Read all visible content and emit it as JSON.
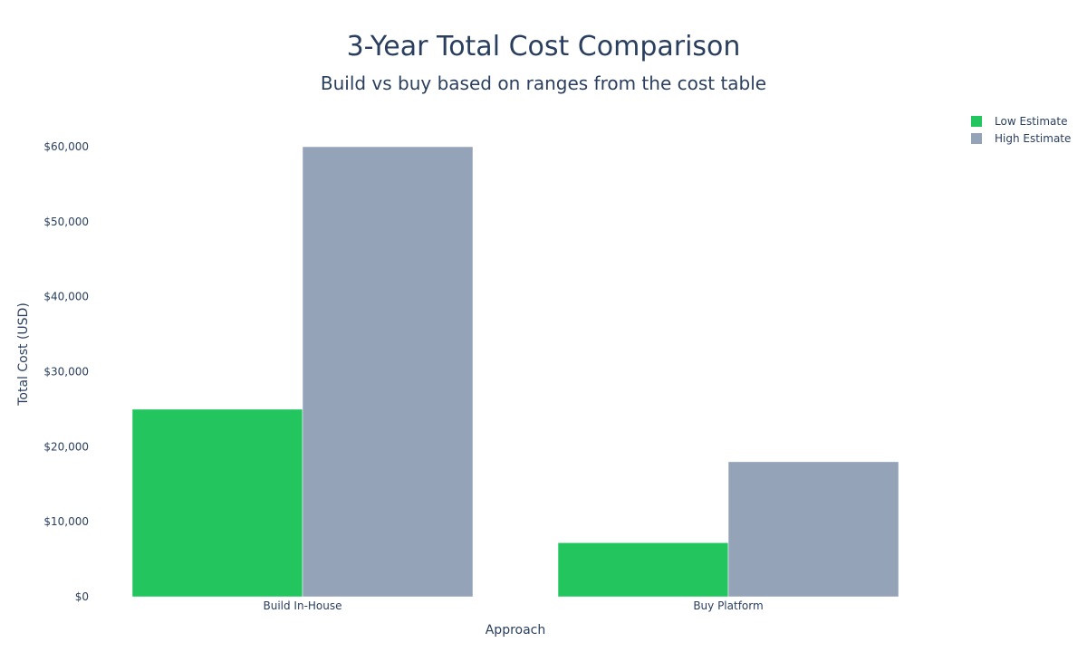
{
  "chart_data": {
    "type": "bar",
    "title": "3-Year Total Cost Comparison",
    "subtitle": "Build vs buy based on ranges from the cost table",
    "xlabel": "Approach",
    "ylabel": "Total Cost (USD)",
    "categories": [
      "Build In-House",
      "Buy Platform"
    ],
    "series": [
      {
        "name": "Low Estimate",
        "values": [
          25000,
          7200
        ],
        "color": "#22c55e"
      },
      {
        "name": "High Estimate",
        "values": [
          60000,
          18000
        ],
        "color": "#94a3b8"
      }
    ],
    "ylim": [
      0,
      60000
    ],
    "yticks": [
      0,
      10000,
      20000,
      30000,
      40000,
      50000,
      60000
    ],
    "ytick_labels": [
      "$0",
      "$10,000",
      "$20,000",
      "$30,000",
      "$40,000",
      "$50,000",
      "$60,000"
    ],
    "grid": false,
    "legend_placement": "top-right",
    "barmode": "group"
  }
}
